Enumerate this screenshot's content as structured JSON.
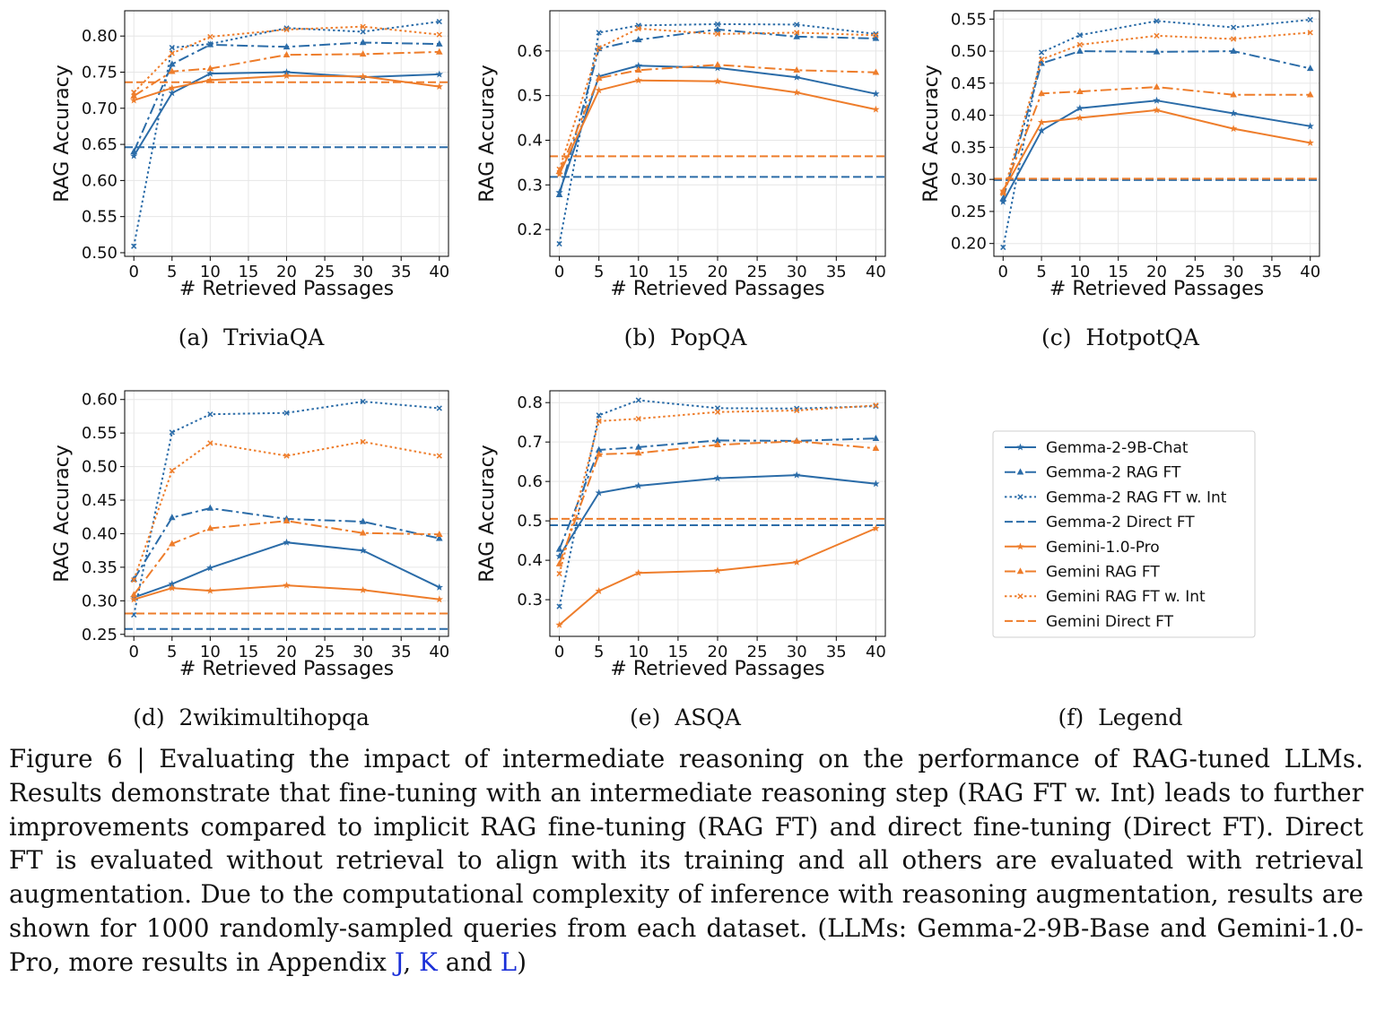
{
  "chart_data": [
    {
      "type": "line",
      "subcaption": "(a)  TriviaQA",
      "xlabel": "# Retrieved Passages",
      "ylabel": "RAG Accuracy",
      "xlim": [
        -1.2,
        41.2
      ],
      "ylim": [
        0.495,
        0.835
      ],
      "xticks": [
        0,
        5,
        10,
        15,
        20,
        25,
        30,
        35,
        40
      ],
      "yticks": [
        "0.50",
        "0.55",
        "0.60",
        "0.65",
        "0.70",
        "0.75",
        "0.80"
      ],
      "x": [
        0,
        5,
        10,
        20,
        30,
        40
      ],
      "grid": true,
      "series": [
        {
          "name": "Gemma-2-9B-Chat",
          "values": [
            0.634,
            0.721,
            0.748,
            0.75,
            0.743,
            0.747
          ]
        },
        {
          "name": "Gemma-2 RAG FT",
          "values": [
            0.64,
            0.761,
            0.788,
            0.785,
            0.791,
            0.789
          ]
        },
        {
          "name": "Gemma-2 RAG FT w. Int",
          "values": [
            0.509,
            0.784,
            0.789,
            0.811,
            0.806,
            0.82
          ]
        },
        {
          "name": "Gemma-2 Direct FT",
          "hline": 0.646
        },
        {
          "name": "Gemini-1.0-Pro",
          "values": [
            0.711,
            0.728,
            0.739,
            0.745,
            0.744,
            0.73
          ]
        },
        {
          "name": "Gemini RAG FT",
          "values": [
            0.717,
            0.751,
            0.755,
            0.774,
            0.775,
            0.778
          ]
        },
        {
          "name": "Gemini RAG FT w. Int",
          "values": [
            0.722,
            0.776,
            0.799,
            0.809,
            0.813,
            0.802
          ]
        },
        {
          "name": "Gemini Direct FT",
          "hline": 0.736
        }
      ]
    },
    {
      "type": "line",
      "subcaption": "(b)  PopQA",
      "xlabel": "# Retrieved Passages",
      "ylabel": "RAG Accuracy",
      "xlim": [
        -1.2,
        41.2
      ],
      "ylim": [
        0.14,
        0.69
      ],
      "xticks": [
        0,
        5,
        10,
        15,
        20,
        25,
        30,
        35,
        40
      ],
      "yticks": [
        "0.2",
        "0.3",
        "0.4",
        "0.5",
        "0.6"
      ],
      "x": [
        0,
        5,
        10,
        20,
        30,
        40
      ],
      "grid": true,
      "series": [
        {
          "name": "Gemma-2-9B-Chat",
          "values": [
            0.283,
            0.543,
            0.567,
            0.562,
            0.541,
            0.504
          ]
        },
        {
          "name": "Gemma-2 RAG FT",
          "values": [
            0.278,
            0.605,
            0.625,
            0.648,
            0.632,
            0.628
          ]
        },
        {
          "name": "Gemma-2 RAG FT w. Int",
          "values": [
            0.168,
            0.641,
            0.657,
            0.66,
            0.659,
            0.638
          ]
        },
        {
          "name": "Gemma-2 Direct FT",
          "hline": 0.318
        },
        {
          "name": "Gemini-1.0-Pro",
          "values": [
            0.324,
            0.512,
            0.534,
            0.532,
            0.507,
            0.469
          ]
        },
        {
          "name": "Gemini RAG FT",
          "values": [
            0.33,
            0.539,
            0.557,
            0.569,
            0.557,
            0.552
          ]
        },
        {
          "name": "Gemini RAG FT w. Int",
          "values": [
            0.335,
            0.607,
            0.65,
            0.638,
            0.641,
            0.635
          ]
        },
        {
          "name": "Gemini Direct FT",
          "hline": 0.364
        }
      ]
    },
    {
      "type": "line",
      "subcaption": "(c)  HotpotQA",
      "xlabel": "# Retrieved Passages",
      "ylabel": "RAG Accuracy",
      "xlim": [
        -1.2,
        41.2
      ],
      "ylim": [
        0.18,
        0.563
      ],
      "xticks": [
        0,
        5,
        10,
        15,
        20,
        25,
        30,
        35,
        40
      ],
      "yticks": [
        "0.20",
        "0.25",
        "0.30",
        "0.35",
        "0.40",
        "0.45",
        "0.50",
        "0.55"
      ],
      "x": [
        0,
        5,
        10,
        20,
        30,
        40
      ],
      "grid": true,
      "series": [
        {
          "name": "Gemma-2-9B-Chat",
          "values": [
            0.265,
            0.376,
            0.411,
            0.423,
            0.403,
            0.383
          ]
        },
        {
          "name": "Gemma-2 RAG FT",
          "values": [
            0.27,
            0.481,
            0.5,
            0.499,
            0.5,
            0.473
          ]
        },
        {
          "name": "Gemma-2 RAG FT w. Int",
          "values": [
            0.194,
            0.498,
            0.525,
            0.547,
            0.537,
            0.549
          ]
        },
        {
          "name": "Gemma-2 Direct FT",
          "hline": 0.299
        },
        {
          "name": "Gemini-1.0-Pro",
          "values": [
            0.282,
            0.389,
            0.396,
            0.408,
            0.379,
            0.357
          ]
        },
        {
          "name": "Gemini RAG FT",
          "values": [
            0.28,
            0.434,
            0.437,
            0.444,
            0.432,
            0.432
          ]
        },
        {
          "name": "Gemini RAG FT w. Int",
          "values": [
            0.278,
            0.487,
            0.51,
            0.524,
            0.519,
            0.529
          ]
        },
        {
          "name": "Gemini Direct FT",
          "hline": 0.301
        }
      ]
    },
    {
      "type": "line",
      "subcaption": "(d)  2wikimultihopqa",
      "xlabel": "# Retrieved Passages",
      "ylabel": "RAG Accuracy",
      "xlim": [
        -1.2,
        41.2
      ],
      "ylim": [
        0.247,
        0.613
      ],
      "xticks": [
        0,
        5,
        10,
        15,
        20,
        25,
        30,
        35,
        40
      ],
      "yticks": [
        "0.25",
        "0.30",
        "0.35",
        "0.40",
        "0.45",
        "0.50",
        "0.55",
        "0.60"
      ],
      "x": [
        0,
        5,
        10,
        20,
        30,
        40
      ],
      "grid": true,
      "series": [
        {
          "name": "Gemma-2-9B-Chat",
          "values": [
            0.305,
            0.325,
            0.349,
            0.387,
            0.375,
            0.32
          ]
        },
        {
          "name": "Gemma-2 RAG FT",
          "values": [
            0.332,
            0.424,
            0.438,
            0.422,
            0.418,
            0.393
          ]
        },
        {
          "name": "Gemma-2 RAG FT w. Int",
          "values": [
            0.279,
            0.551,
            0.578,
            0.58,
            0.597,
            0.587
          ]
        },
        {
          "name": "Gemma-2 Direct FT",
          "hline": 0.258
        },
        {
          "name": "Gemini-1.0-Pro",
          "values": [
            0.302,
            0.319,
            0.315,
            0.323,
            0.316,
            0.302
          ]
        },
        {
          "name": "Gemini RAG FT",
          "values": [
            0.309,
            0.385,
            0.408,
            0.419,
            0.401,
            0.399
          ]
        },
        {
          "name": "Gemini RAG FT w. Int",
          "values": [
            0.331,
            0.494,
            0.535,
            0.516,
            0.537,
            0.516
          ]
        },
        {
          "name": "Gemini Direct FT",
          "hline": 0.281
        }
      ]
    },
    {
      "type": "line",
      "subcaption": "(e)  ASQA",
      "xlabel": "# Retrieved Passages",
      "ylabel": "RAG Accuracy",
      "xlim": [
        -1.2,
        41.2
      ],
      "ylim": [
        0.207,
        0.83
      ],
      "xticks": [
        0,
        5,
        10,
        15,
        20,
        25,
        30,
        35,
        40
      ],
      "yticks": [
        "0.3",
        "0.4",
        "0.5",
        "0.6",
        "0.7",
        "0.8"
      ],
      "x": [
        0,
        5,
        10,
        20,
        30,
        40
      ],
      "grid": true,
      "series": [
        {
          "name": "Gemma-2-9B-Chat",
          "values": [
            0.41,
            0.571,
            0.589,
            0.608,
            0.616,
            0.594
          ]
        },
        {
          "name": "Gemma-2 RAG FT",
          "values": [
            0.428,
            0.68,
            0.687,
            0.704,
            0.703,
            0.709
          ]
        },
        {
          "name": "Gemma-2 RAG FT w. Int",
          "values": [
            0.283,
            0.768,
            0.806,
            0.786,
            0.785,
            0.791
          ]
        },
        {
          "name": "Gemma-2 Direct FT",
          "hline": 0.489
        },
        {
          "name": "Gemini-1.0-Pro",
          "values": [
            0.236,
            0.322,
            0.368,
            0.374,
            0.395,
            0.481
          ]
        },
        {
          "name": "Gemini RAG FT",
          "values": [
            0.391,
            0.669,
            0.672,
            0.693,
            0.702,
            0.684
          ]
        },
        {
          "name": "Gemini RAG FT w. Int",
          "values": [
            0.366,
            0.753,
            0.759,
            0.776,
            0.78,
            0.793
          ]
        },
        {
          "name": "Gemini Direct FT",
          "hline": 0.505
        }
      ]
    }
  ],
  "legend": {
    "subcaption": "(f)  Legend",
    "entries": [
      {
        "label": "Gemma-2-9B-Chat",
        "color": "#2b6ca8",
        "dash": "solid",
        "marker": "star"
      },
      {
        "label": "Gemma-2 RAG FT",
        "color": "#2b6ca8",
        "dash": "dashdot",
        "marker": "triangle"
      },
      {
        "label": "Gemma-2 RAG FT w. Int",
        "color": "#2b6ca8",
        "dash": "dotted",
        "marker": "x"
      },
      {
        "label": "Gemma-2 Direct FT",
        "color": "#2b6ca8",
        "dash": "dashed",
        "marker": "none"
      },
      {
        "label": "Gemini-1.0-Pro",
        "color": "#ee7d2b",
        "dash": "solid",
        "marker": "star"
      },
      {
        "label": "Gemini RAG FT",
        "color": "#ee7d2b",
        "dash": "dashdot",
        "marker": "triangle"
      },
      {
        "label": "Gemini RAG FT w. Int",
        "color": "#ee7d2b",
        "dash": "dotted",
        "marker": "x"
      },
      {
        "label": "Gemini Direct FT",
        "color": "#ee7d2b",
        "dash": "dashed",
        "marker": "none"
      }
    ]
  },
  "caption": {
    "part1": "Figure 6 | Evaluating the impact of intermediate reasoning on the performance of RAG-tuned LLMs. Results demonstrate that fine-tuning with an intermediate reasoning step (RAG FT w. Int) leads to further improvements compared to implicit RAG fine-tuning (RAG FT) and direct fine-tuning (Direct FT). Direct FT is evaluated without retrieval to align with its training and all others are evaluated with retrieval augmentation.  Due to the computational complexity of inference with reasoning augmentation, results are shown for 1000 randomly-sampled queries from each dataset.  (LLMs: Gemma-2-9B-Base and Gemini-1.0-Pro, more results in Appendix ",
    "ref1": "J",
    "sep1": ", ",
    "ref2": "K",
    "sep2": " and ",
    "ref3": "L",
    "part2": ")"
  }
}
